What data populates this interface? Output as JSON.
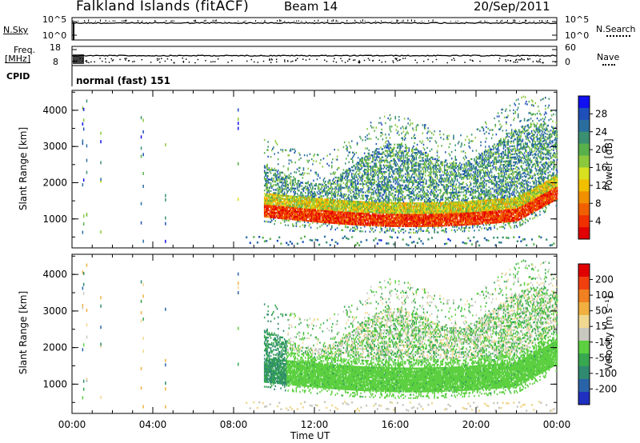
{
  "header": {
    "title_left": "Falkland Islands (fitACF)",
    "title_mid": "Beam 14",
    "title_right": "20/Sep/2011"
  },
  "top_panels": {
    "nsky_label": "N.Sky",
    "nsky_ticks": [
      "10^5",
      "10^0"
    ],
    "nsearch_label": "N.Search",
    "nsearch_ticks": [
      "10^5",
      "10^0"
    ],
    "freq_label": "Freq.",
    "freq_unit": "[MHz]",
    "freq_ticks": [
      "18",
      "8"
    ],
    "nave_label": "Nave",
    "nave_ticks": [
      "60",
      "0"
    ],
    "cpid_label": "CPID",
    "cpid_value": "normal (fast) 151"
  },
  "chart_data": [
    {
      "type": "heatmap",
      "name": "power",
      "ylabel": "Slant Range [km]",
      "ylim": [
        200,
        4550
      ],
      "yticks": [
        "4000",
        "3000",
        "2000",
        "1000"
      ],
      "colorbar_label": "Power [dB]",
      "colorbar_ticks": [
        "28",
        "24",
        "20",
        "16",
        "12",
        "8",
        "4"
      ],
      "colors": [
        "#1010f0",
        "#1f4fb8",
        "#2a6ea0",
        "#3a9070",
        "#58b04a",
        "#8cc83c",
        "#d8e020",
        "#f0c000",
        "#f09000",
        "#f06000",
        "#f03000",
        "#e00000"
      ]
    },
    {
      "type": "heatmap",
      "name": "velocity",
      "ylabel": "Slant Range [km]",
      "ylim": [
        200,
        4550
      ],
      "yticks": [
        "4000",
        "3000",
        "2000",
        "1000"
      ],
      "colorbar_label": "Velocity [m s⁻¹]",
      "colorbar_ticks": [
        "200",
        "100",
        "50",
        "15",
        "-15",
        "-50",
        "-100",
        "-200"
      ],
      "colors": [
        "#2030c0",
        "#2a64a8",
        "#2f8a70",
        "#38a850",
        "#5cd040",
        "#c8c8c0",
        "#f0d890",
        "#f0b040",
        "#f08020",
        "#f04010",
        "#e00000"
      ]
    }
  ],
  "x_axis": {
    "label": "Time UT",
    "ticks": [
      "00:00",
      "04:00",
      "08:00",
      "12:00",
      "16:00",
      "20:00",
      "00:00"
    ]
  }
}
